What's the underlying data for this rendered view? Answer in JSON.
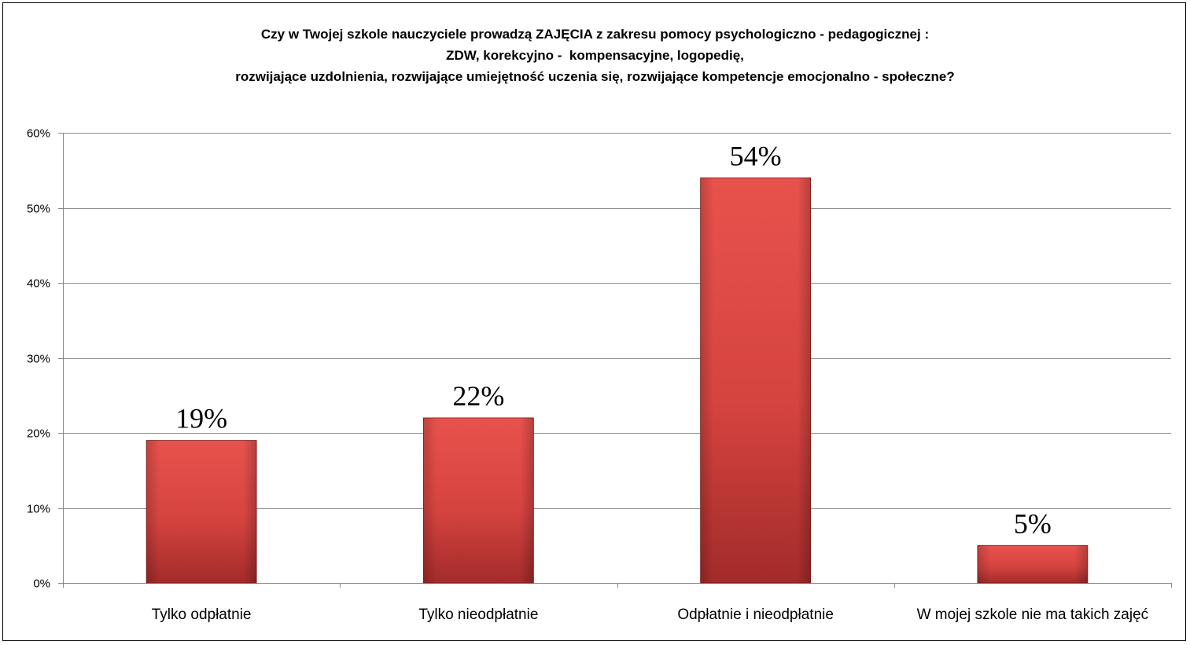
{
  "chart_data": {
    "type": "bar",
    "title": [
      "Czy w Twojej szkole nauczyciele prowadzą ZAJĘCIA z zakresu pomocy psychologiczno - pedagogicznej :",
      "ZDW, korekcyjno -  kompensacyjne, logopedię,",
      "rozwijające uzdolnienia, rozwijające umiejętność uczenia się, rozwijające kompetencje emocjonalno - społeczne?"
    ],
    "categories": [
      "Tylko odpłatnie",
      "Tylko nieodpłatnie",
      "Odpłatnie i nieodpłatnie",
      "W mojej szkole nie ma takich zajęć"
    ],
    "values": [
      19,
      22,
      54,
      5
    ],
    "data_labels": [
      "19%",
      "22%",
      "54%",
      "5%"
    ],
    "ylim": [
      0,
      60
    ],
    "yticks": [
      0,
      10,
      20,
      30,
      40,
      50,
      60
    ],
    "ytick_labels": [
      "0%",
      "10%",
      "20%",
      "30%",
      "40%",
      "50%",
      "60%"
    ],
    "grid": true,
    "legend": "none",
    "colors": {
      "bar_light": "#e8524d",
      "bar_mid": "#d64440",
      "bar_dark": "#a32b2a",
      "grid": "#8c8c8c"
    }
  }
}
